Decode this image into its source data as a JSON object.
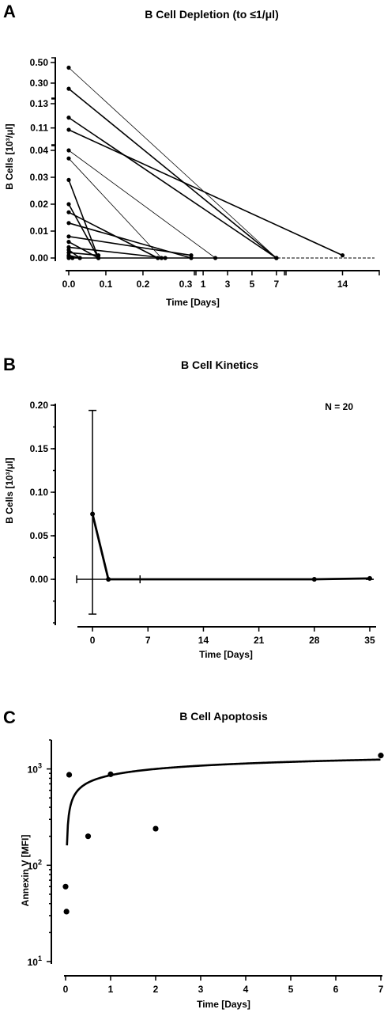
{
  "figure": {
    "panel_labels": [
      "A",
      "B",
      "C"
    ]
  },
  "chart_data": [
    {
      "type": "line",
      "panel": "A",
      "title": "B Cell Depletion (to ≤1/μl)",
      "xlabel": "Time [Days]",
      "ylabel": "B Cells [10³/μl]",
      "x_segments": [
        {
          "range": [
            0,
            0.33
          ],
          "ticks": [
            0,
            0.1,
            0.2
          ],
          "tick_labels": [
            "0.0",
            "0.1",
            "0.2"
          ]
        },
        {
          "range": [
            0.67,
            7.4
          ],
          "ticks": [
            1,
            3,
            5,
            7
          ],
          "tick_labels": [
            "1",
            "3",
            "5",
            "7"
          ]
        },
        {
          "range": [
            13,
            14.6
          ],
          "ticks": [
            14
          ],
          "tick_labels": [
            "14"
          ]
        }
      ],
      "x_segment_labels": [
        "0.3"
      ],
      "y_segments": [
        {
          "range": [
            0,
            0.04
          ],
          "ticks": [
            0,
            0.01,
            0.02,
            0.03,
            0.04
          ],
          "tick_labels": [
            "0.00",
            "0.01",
            "0.02",
            "0.03",
            "0.04"
          ]
        },
        {
          "range": [
            0.1,
            0.13
          ],
          "ticks": [
            0.11,
            0.13
          ],
          "tick_labels": [
            "0.11",
            "0.13"
          ]
        },
        {
          "range": [
            0.2,
            0.5
          ],
          "ticks": [
            0.3,
            0.5
          ],
          "tick_labels": [
            "0.30",
            "0.50"
          ]
        }
      ],
      "series": [
        {
          "x": [
            0,
            7
          ],
          "y": [
            0.45,
            0.0
          ],
          "thin": true
        },
        {
          "x": [
            0,
            7
          ],
          "y": [
            0.245,
            0.0
          ]
        },
        {
          "x": [
            0,
            7
          ],
          "y": [
            0.131,
            0.0
          ]
        },
        {
          "x": [
            0,
            7
          ],
          "y": [
            0.1185,
            0.0
          ]
        },
        {
          "x": [
            0,
            14
          ],
          "y": [
            0.1085,
            0.001
          ]
        },
        {
          "x": [
            0,
            2
          ],
          "y": [
            0.04,
            0.0
          ],
          "thin": true
        },
        {
          "x": [
            0,
            0.25
          ],
          "y": [
            0.037,
            0.0
          ],
          "thin": true
        },
        {
          "x": [
            0,
            0.08
          ],
          "y": [
            0.029,
            0.0
          ]
        },
        {
          "x": [
            0,
            0.08
          ],
          "y": [
            0.02,
            0.0
          ]
        },
        {
          "x": [
            0,
            0.24
          ],
          "y": [
            0.017,
            0.0
          ]
        },
        {
          "x": [
            0,
            0.33
          ],
          "y": [
            0.013,
            0.0
          ]
        },
        {
          "x": [
            0,
            0.33
          ],
          "y": [
            0.008,
            0.001
          ]
        },
        {
          "x": [
            0,
            0.08
          ],
          "y": [
            0.006,
            0.0
          ]
        },
        {
          "x": [
            0,
            0.26
          ],
          "y": [
            0.004,
            0.0
          ]
        },
        {
          "x": [
            0,
            0.03
          ],
          "y": [
            0.003,
            0.0
          ]
        },
        {
          "x": [
            0,
            0.08
          ],
          "y": [
            0.002,
            0.001
          ]
        },
        {
          "x": [
            0,
            0.03
          ],
          "y": [
            0.001,
            0.0
          ]
        },
        {
          "x": [
            0,
            0.01
          ],
          "y": [
            0.0005,
            0.0
          ]
        }
      ]
    },
    {
      "type": "line",
      "panel": "B",
      "title": "B Cell Kinetics",
      "annotation": "N = 20",
      "xlabel": "Time [Days]",
      "ylabel": "B Cells [10³/μl]",
      "xlim": [
        -4,
        36
      ],
      "ylim": [
        -0.05,
        0.2
      ],
      "xticks": [
        0,
        7,
        14,
        21,
        28,
        35
      ],
      "xtick_labels": [
        "0",
        "7",
        "14",
        "21",
        "28",
        "35"
      ],
      "yticks": [
        0.0,
        0.05,
        0.1,
        0.15,
        0.2
      ],
      "ytick_labels": [
        "0.00",
        "0.05",
        "0.10",
        "0.15",
        "0.20"
      ],
      "series": [
        {
          "x": [
            0,
            2,
            28,
            35
          ],
          "y": [
            0.075,
            0.0,
            0.0,
            0.001
          ],
          "err_hi": [
            0.194,
            0.0,
            0.0,
            0.0
          ],
          "err_lo": [
            -0.04,
            0.0,
            0.0,
            0.0
          ]
        }
      ],
      "horizontal_error": {
        "x": [
          -2,
          6
        ],
        "y": 0.0
      }
    },
    {
      "type": "scatter",
      "panel": "C",
      "title": "B Cell Apoptosis",
      "xlabel": "Time [Days]",
      "ylabel": "Annexin V [MFI]",
      "xlim": [
        0,
        7
      ],
      "ylim": [
        10,
        2000
      ],
      "yscale": "log",
      "xticks": [
        0,
        1,
        2,
        3,
        4,
        5,
        6,
        7
      ],
      "xtick_labels": [
        "0",
        "1",
        "2",
        "3",
        "4",
        "5",
        "6",
        "7"
      ],
      "ytick_values": [
        10,
        100,
        1000
      ],
      "ytick_labels": [
        {
          "base": "10",
          "exp": "1"
        },
        {
          "base": "10",
          "exp": "2"
        },
        {
          "base": "10",
          "exp": "3"
        }
      ],
      "points": {
        "x": [
          0,
          0.02,
          0.08,
          0.5,
          1,
          2,
          7
        ],
        "y": [
          60,
          33,
          870,
          200,
          880,
          240,
          1380
        ]
      }
    }
  ]
}
